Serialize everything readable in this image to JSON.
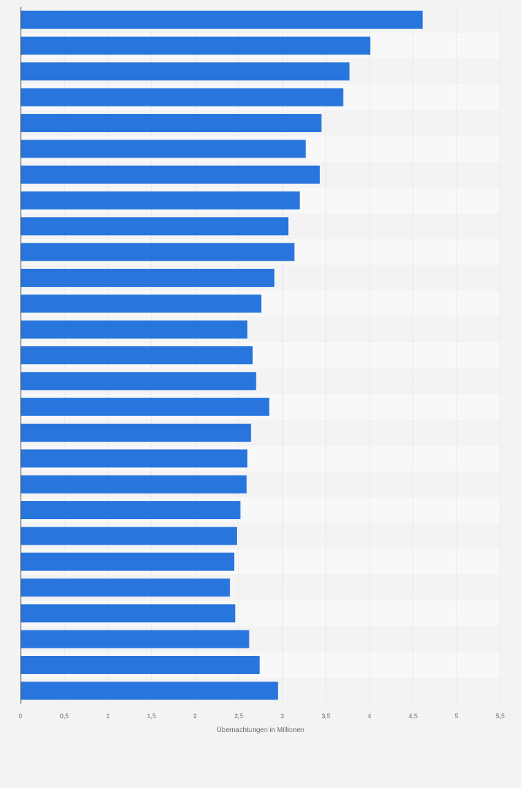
{
  "chart_data": {
    "type": "bar",
    "orientation": "horizontal",
    "xlabel": "Übernachtungen in Millionen",
    "xlim": [
      0,
      5.5
    ],
    "x_ticks": [
      "0",
      "0,5",
      "1",
      "1,5",
      "2",
      "2,5",
      "3",
      "3,5",
      "4",
      "4,5",
      "5",
      "5,5"
    ],
    "category_labels_visible": false,
    "values": [
      4.61,
      4.01,
      3.77,
      3.7,
      3.45,
      3.27,
      3.43,
      3.2,
      3.07,
      3.14,
      2.91,
      2.76,
      2.6,
      2.66,
      2.7,
      2.85,
      2.64,
      2.6,
      2.59,
      2.52,
      2.48,
      2.45,
      2.4,
      2.46,
      2.62,
      2.74,
      2.95
    ],
    "grid": true,
    "bar_color": "#2876dd"
  }
}
